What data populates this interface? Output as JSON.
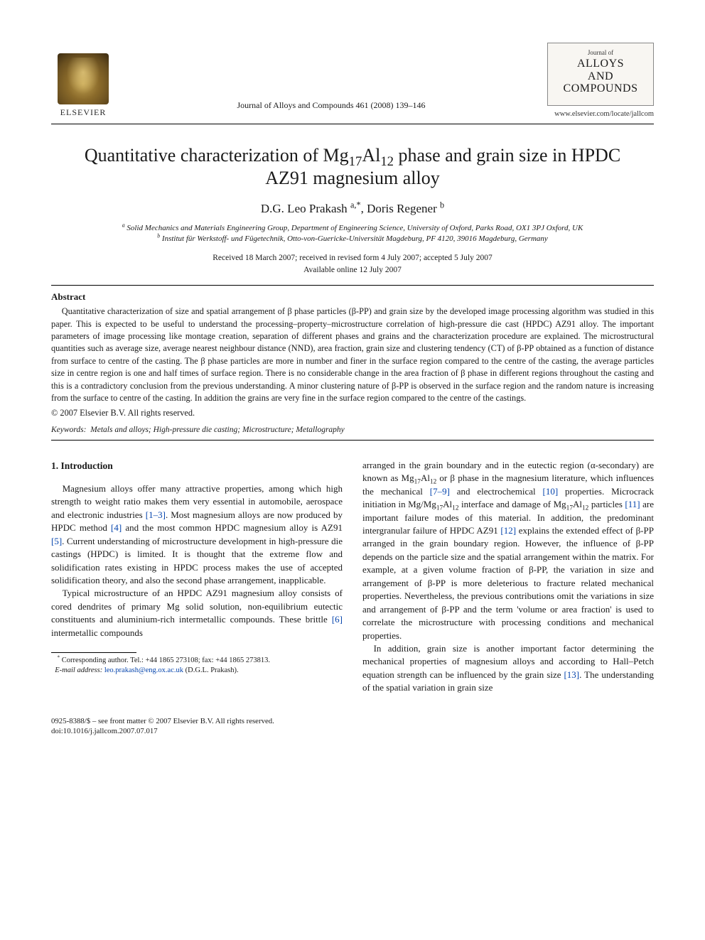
{
  "header": {
    "publisher_name": "ELSEVIER",
    "journal_ref": "Journal of Alloys and Compounds 461 (2008) 139–146",
    "journal_logo_small": "Journal of",
    "journal_logo_name_l1": "ALLOYS",
    "journal_logo_name_l2": "AND COMPOUNDS",
    "journal_url": "www.elsevier.com/locate/jallcom"
  },
  "title": {
    "pre_sub1": "Quantitative characterization of Mg",
    "sub1": "17",
    "mid1": "Al",
    "sub2": "12",
    "post": " phase and grain size in HPDC AZ91 magnesium alloy"
  },
  "authors": {
    "a1_name": "D.G. Leo Prakash",
    "a1_aff": "a,",
    "a1_mark": "*",
    "sep": ", ",
    "a2_name": "Doris Regener",
    "a2_aff": "b"
  },
  "affiliations": {
    "a": "Solid Mechanics and Materials Engineering Group, Department of Engineering Science, University of Oxford, Parks Road, OX1 3PJ Oxford, UK",
    "b": "Institut für Werkstoff- und Fügetechnik, Otto-von-Guericke-Universität Magdeburg, PF 4120, 39016 Magdeburg, Germany"
  },
  "dates": {
    "received": "Received 18 March 2007; received in revised form 4 July 2007; accepted 5 July 2007",
    "online": "Available online 12 July 2007"
  },
  "abstract": {
    "heading": "Abstract",
    "body": "Quantitative characterization of size and spatial arrangement of β phase particles (β-PP) and grain size by the developed image processing algorithm was studied in this paper. This is expected to be useful to understand the processing–property–microstructure correlation of high-pressure die cast (HPDC) AZ91 alloy. The important parameters of image processing like montage creation, separation of different phases and grains and the characterization procedure are explained. The microstructural quantities such as average size, average nearest neighbour distance (NND), area fraction, grain size and clustering tendency (CT) of β-PP obtained as a function of distance from surface to centre of the casting. The β phase particles are more in number and finer in the surface region compared to the centre of the casting, the average particles size in centre region is one and half times of surface region. There is no considerable change in the area fraction of β phase in different regions throughout the casting and this is a contradictory conclusion from the previous understanding. A minor clustering nature of β-PP is observed in the surface region and the random nature is increasing from the surface to centre of the casting. In addition the grains are very fine in the surface region compared to the centre of the castings.",
    "copyright": "© 2007 Elsevier B.V. All rights reserved."
  },
  "keywords": {
    "label": "Keywords:",
    "value": "Metals and alloys; High-pressure die casting; Microstructure; Metallography"
  },
  "body": {
    "section_heading": "1.  Introduction",
    "left_p1": "Magnesium alloys offer many attractive properties, among which high strength to weight ratio makes them very essential in automobile, aerospace and electronic industries ",
    "left_p1_ref": "[1–3]",
    "left_p1b": ". Most magnesium alloys are now produced by HPDC method ",
    "left_p1_ref2": "[4]",
    "left_p1c": " and the most common HPDC magnesium alloy is AZ91 ",
    "left_p1_ref3": "[5]",
    "left_p1d": ". Current understanding of microstructure development in high-pressure die castings (HPDC) is limited. It is thought that the extreme flow and solidification rates existing in HPDC process makes the use of accepted solidification theory, and also the second phase arrangement, inapplicable.",
    "left_p2": "Typical microstructure of an HPDC AZ91 magnesium alloy consists of cored dendrites of primary Mg solid solution, non-equilibrium eutectic constituents and aluminium-rich intermetallic compounds. These brittle ",
    "left_p2_ref": "[6]",
    "left_p2b": " intermetallic compounds",
    "right_p1a": "arranged in the grain boundary and in the eutectic region (α-secondary) are known as Mg",
    "right_p1_sub1": "17",
    "right_p1b": "Al",
    "right_p1_sub2": "12",
    "right_p1c": " or β phase in the magnesium literature, which influences the mechanical ",
    "right_p1_ref1": "[7–9]",
    "right_p1d": " and electrochemical ",
    "right_p1_ref2": "[10]",
    "right_p1e": " properties. Microcrack initiation in Mg/Mg",
    "right_p1_sub3": "17",
    "right_p1f": "Al",
    "right_p1_sub4": "12",
    "right_p1g": " interface and damage of Mg",
    "right_p1_sub5": "17",
    "right_p1h": "Al",
    "right_p1_sub6": "12",
    "right_p1i": " particles ",
    "right_p1_ref3": "[11]",
    "right_p1j": " are important failure modes of this material. In addition, the predominant intergranular failure of HPDC AZ91 ",
    "right_p1_ref4": "[12]",
    "right_p1k": " explains the extended effect of β-PP arranged in the grain boundary region. However, the influence of β-PP depends on the particle size and the spatial arrangement within the matrix. For example, at a given volume fraction of β-PP, the variation in size and arrangement of β-PP is more deleterious to fracture related mechanical properties. Nevertheless, the previous contributions omit the variations in size and arrangement of β-PP and the term 'volume or area fraction' is used to correlate the microstructure with processing conditions and mechanical properties.",
    "right_p2a": "In addition, grain size is another important factor determining the mechanical properties of magnesium alloys and according to Hall–Petch equation strength can be influenced by the grain size ",
    "right_p2_ref": "[13]",
    "right_p2b": ". The understanding of the spatial variation in grain size"
  },
  "footnote": {
    "corr": "Corresponding author. Tel.: +44 1865 273108; fax: +44 1865 273813.",
    "email_label": "E-mail address:",
    "email": "leo.prakash@eng.ox.ac.uk",
    "email_person": "(D.G.L. Prakash)."
  },
  "footer": {
    "line1": "0925-8388/$ – see front matter © 2007 Elsevier B.V. All rights reserved.",
    "line2": "doi:10.1016/j.jallcom.2007.07.017"
  },
  "colors": {
    "link": "#0645ad",
    "text": "#1a1a1a",
    "background": "#ffffff"
  }
}
